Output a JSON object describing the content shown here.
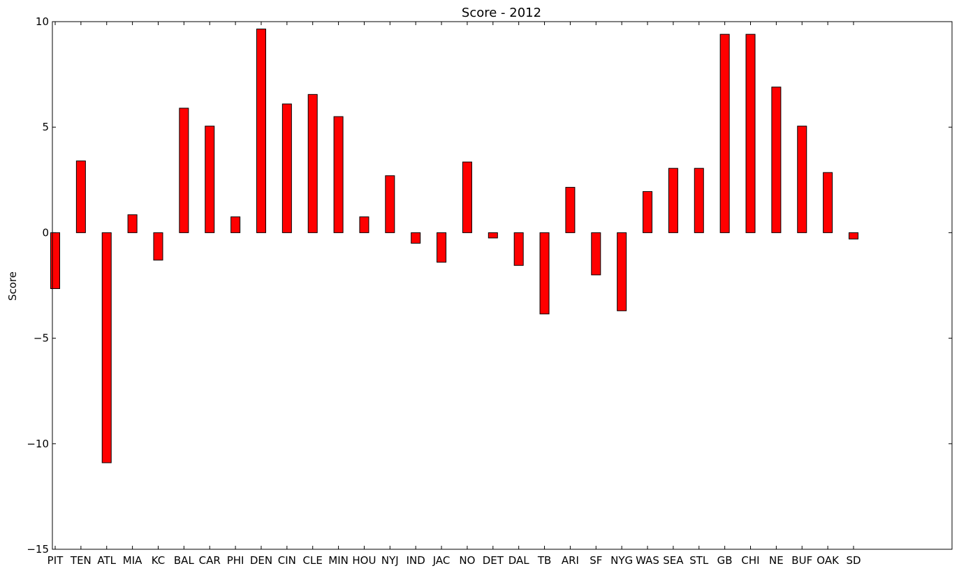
{
  "chart_data": {
    "type": "bar",
    "title": "Score - 2012",
    "xlabel": "",
    "ylabel": "Score",
    "ylim": [
      -15,
      10
    ],
    "yticks": [
      10,
      5,
      0,
      -5,
      -10,
      -15
    ],
    "ytick_labels": [
      "10",
      "5",
      "0",
      "−5",
      "−10",
      "−15"
    ],
    "grid": false,
    "legend": "none",
    "categories": [
      "PIT",
      "TEN",
      "ATL",
      "MIA",
      "KC",
      "BAL",
      "CAR",
      "PHI",
      "DEN",
      "CIN",
      "CLE",
      "MIN",
      "HOU",
      "NYJ",
      "IND",
      "JAC",
      "NO",
      "DET",
      "DAL",
      "TB",
      "ARI",
      "SF",
      "NYG",
      "WAS",
      "SEA",
      "STL",
      "GB",
      "CHI",
      "NE",
      "BUF",
      "OAK",
      "SD"
    ],
    "values": [
      -2.65,
      3.4,
      -10.9,
      0.85,
      -1.3,
      5.9,
      5.05,
      0.75,
      9.65,
      6.1,
      6.55,
      5.5,
      0.75,
      2.7,
      -0.5,
      -1.4,
      3.35,
      -0.25,
      -1.55,
      -3.85,
      2.15,
      -2.0,
      -3.7,
      1.95,
      3.05,
      3.05,
      9.4,
      9.4,
      6.9,
      5.05,
      2.85,
      -0.3
    ],
    "bar_color": "#ff0000",
    "edge_color": "#000000"
  }
}
